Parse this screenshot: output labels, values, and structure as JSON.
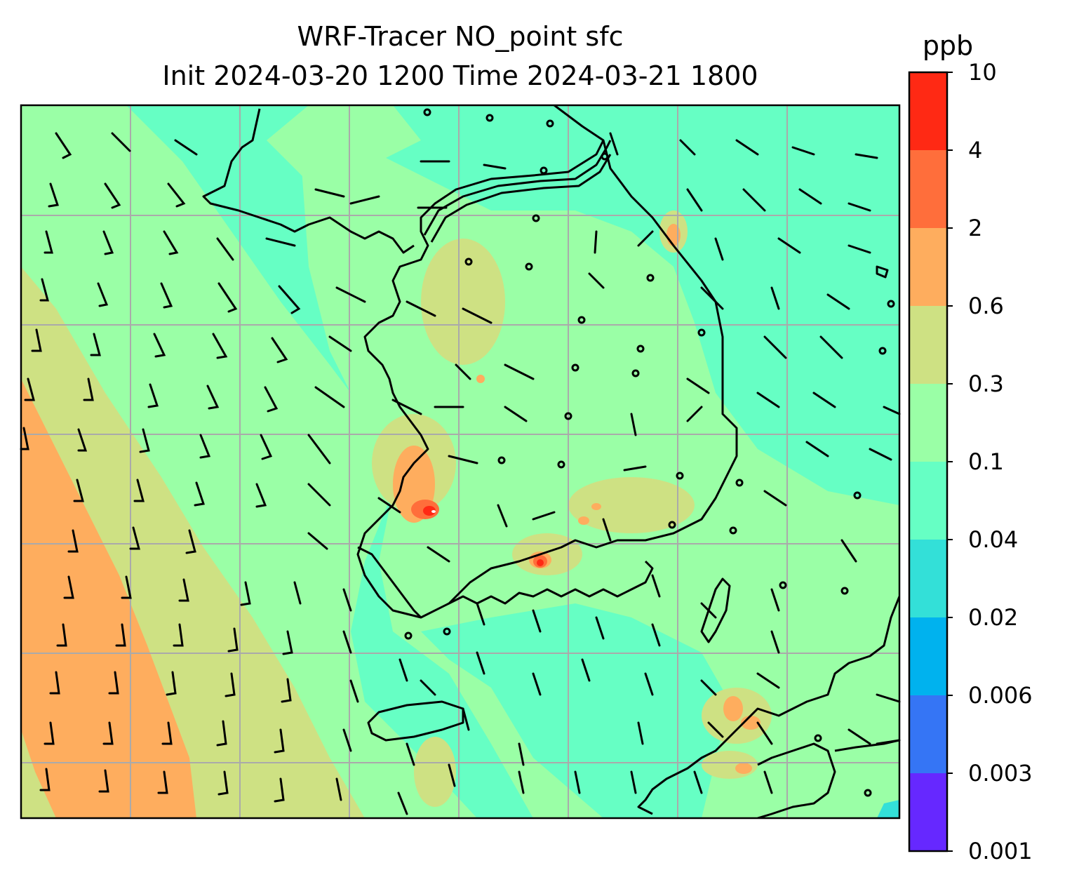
{
  "title": {
    "line1": "WRF-Tracer NO_point sfc",
    "line2": "Init 2024-03-20 1200 Time 2024-03-21 1800"
  },
  "colorbar": {
    "unit": "ppb",
    "levels": [
      "0.001",
      "0.003",
      "0.006",
      "0.02",
      "0.04",
      "0.1",
      "0.3",
      "0.6",
      "2",
      "4",
      "10"
    ],
    "colors": [
      "#6628ff",
      "#3575f5",
      "#00b2ee",
      "#33e0d8",
      "#66ffc4",
      "#9affa6",
      "#cee183",
      "#fead5e",
      "#ff6e3b",
      "#ff2914"
    ]
  },
  "map": {
    "ocean_field_color": "#66ffc4",
    "coastline_color": "#000000",
    "gridline_color": "#aaaaaa"
  }
}
